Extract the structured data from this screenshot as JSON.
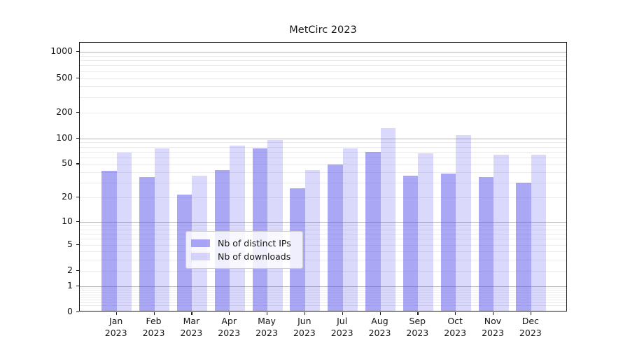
{
  "title": "MetCirc 2023",
  "colors": {
    "bar_distinct_ips": "rgba(85,80,235,0.50)",
    "bar_downloads": "rgba(85,80,235,0.22)",
    "grid_major": "#b4b4b4",
    "grid_minor": "#ebebeb",
    "axis_spine": "#1a1a1a",
    "text": "#151515"
  },
  "legend": {
    "items": [
      {
        "label": "Nb of distinct IPs",
        "color": "rgba(85,80,235,0.50)"
      },
      {
        "label": "Nb of downloads",
        "color": "rgba(85,80,235,0.22)"
      }
    ]
  },
  "chart_data": {
    "type": "bar",
    "title": "MetCirc 2023",
    "categories": [
      "Jan 2023",
      "Feb 2023",
      "Mar 2023",
      "Apr 2023",
      "May 2023",
      "Jun 2023",
      "Jul 2023",
      "Aug 2023",
      "Sep 2023",
      "Oct 2023",
      "Nov 2023",
      "Dec 2023"
    ],
    "series": [
      {
        "name": "Nb of distinct IPs",
        "values": [
          40,
          34,
          21,
          41,
          73,
          25,
          48,
          67,
          35,
          37,
          34,
          29
        ]
      },
      {
        "name": "Nb of downloads",
        "values": [
          66,
          74,
          35,
          80,
          93,
          41,
          74,
          128,
          65,
          105,
          62,
          62
        ]
      }
    ],
    "xlabel": "",
    "ylabel": "",
    "yscale": "log1p (position proportional to log10(value+1))",
    "yticks": [
      0,
      1,
      2,
      5,
      10,
      20,
      50,
      100,
      200,
      500,
      1000
    ],
    "ylim": [
      0,
      1280
    ],
    "grid": true,
    "legend_position": "lower center inside plot"
  }
}
